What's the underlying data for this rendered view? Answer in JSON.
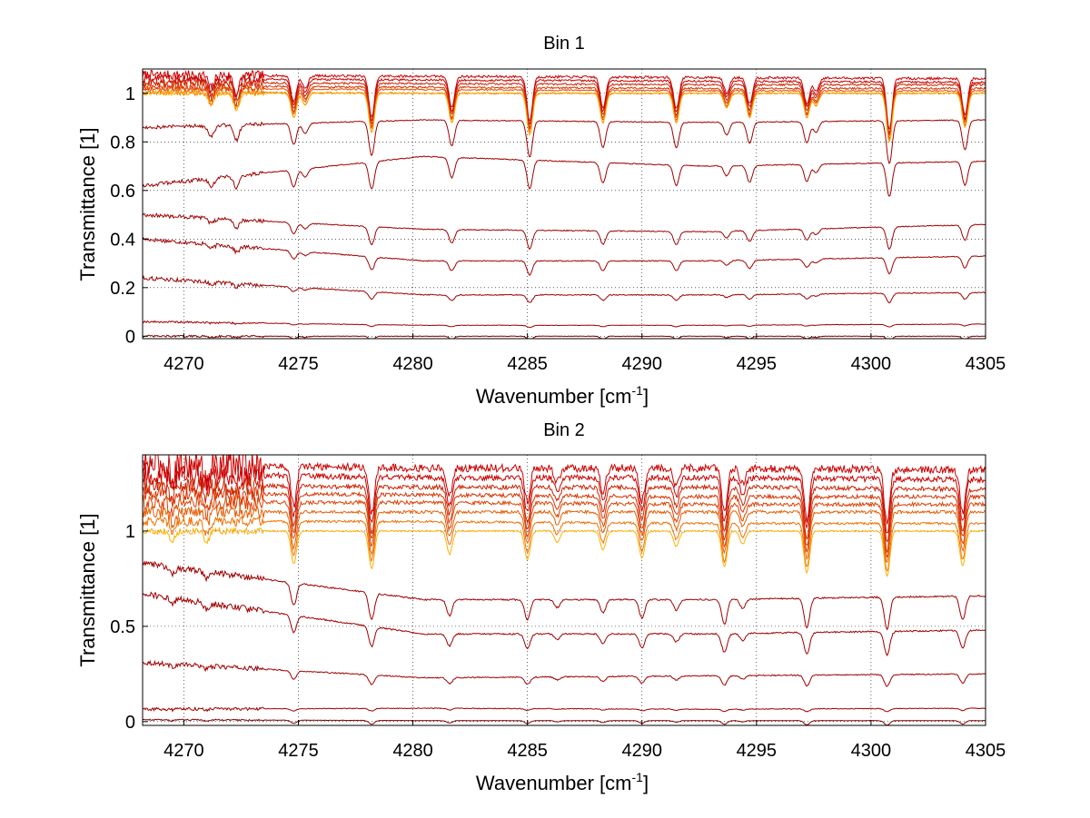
{
  "chart_data": [
    {
      "type": "line",
      "title": "Bin 1",
      "xlabel": "Wavenumber [cm",
      "xlabel_sup": "-1",
      "xlabel_suffix": "]",
      "ylabel": "Transmittance [1]",
      "xlim": [
        4268.2,
        4305
      ],
      "ylim": [
        -0.01,
        1.1
      ],
      "xticks": [
        4270,
        4275,
        4280,
        4285,
        4290,
        4295,
        4300,
        4305
      ],
      "yticks": [
        0,
        0.2,
        0.4,
        0.6,
        0.8,
        1
      ],
      "ytick_labels": [
        "0",
        "0.2",
        "0.4",
        "0.6",
        "0.8",
        "1"
      ],
      "grid": true,
      "absorption_lines_x": [
        4271.2,
        4272.3,
        4274.8,
        4275.3,
        4278.2,
        4281.7,
        4285.1,
        4288.3,
        4291.5,
        4293.7,
        4294.7,
        4297.2,
        4297.6,
        4300.8,
        4304.1
      ],
      "absorption_depths": [
        0.05,
        0.07,
        0.1,
        0.05,
        0.16,
        0.12,
        0.17,
        0.12,
        0.12,
        0.06,
        0.1,
        0.1,
        0.05,
        0.2,
        0.14
      ],
      "series": [
        {
          "baseline": [
            1.075,
            1.07,
            1.065,
            1.06
          ],
          "noise": 0.005,
          "color": "#cc0000"
        },
        {
          "baseline": [
            1.06,
            1.055,
            1.05,
            1.045
          ],
          "noise": 0.004,
          "color": "#cc0000"
        },
        {
          "baseline": [
            1.045,
            1.04,
            1.035,
            1.035
          ],
          "noise": 0.004,
          "color": "#cc2200"
        },
        {
          "baseline": [
            1.03,
            1.025,
            1.02,
            1.02
          ],
          "noise": 0.004,
          "color": "#d93300"
        },
        {
          "baseline": [
            1.02,
            1.015,
            1.01,
            1.01
          ],
          "noise": 0.003,
          "color": "#e64d00"
        },
        {
          "baseline": [
            1.005,
            1.0,
            1.0,
            1.0
          ],
          "noise": 0.003,
          "color": "#f07000"
        },
        {
          "baseline": [
            1.0,
            1.0,
            1.0,
            1.0
          ],
          "noise": 0.002,
          "color": "#ffb000"
        },
        {
          "baseline": [
            0.86,
            0.89,
            0.88,
            0.89
          ],
          "noise": 0.002,
          "color": "#a00000"
        },
        {
          "baseline": [
            0.62,
            0.74,
            0.7,
            0.72
          ],
          "noise": 0.002,
          "color": "#a00000"
        },
        {
          "baseline": [
            0.5,
            0.44,
            0.43,
            0.46
          ],
          "noise": 0.002,
          "color": "#a00000"
        },
        {
          "baseline": [
            0.4,
            0.31,
            0.31,
            0.33
          ],
          "noise": 0.002,
          "color": "#a00000"
        },
        {
          "baseline": [
            0.24,
            0.17,
            0.17,
            0.18
          ],
          "noise": 0.002,
          "color": "#a00000"
        },
        {
          "baseline": [
            0.06,
            0.045,
            0.045,
            0.05
          ],
          "noise": 0.001,
          "color": "#a00000"
        },
        {
          "baseline": [
            0.0,
            0.0,
            0.0,
            0.0
          ],
          "noise": 0.001,
          "color": "#800000"
        }
      ]
    },
    {
      "type": "line",
      "title": "Bin 2",
      "xlabel": "Wavenumber [cm",
      "xlabel_sup": "-1",
      "xlabel_suffix": "]",
      "ylabel": "Transmittance [1]",
      "xlim": [
        4268.2,
        4305
      ],
      "ylim": [
        -0.02,
        1.4
      ],
      "xticks": [
        4270,
        4275,
        4280,
        4285,
        4290,
        4295,
        4300,
        4305
      ],
      "yticks": [
        0,
        0.5,
        1
      ],
      "ytick_labels": [
        "0",
        "0.5",
        "1"
      ],
      "grid": true,
      "absorption_lines_x": [
        4269.5,
        4271.0,
        4274.8,
        4278.2,
        4281.6,
        4285.0,
        4286.3,
        4288.3,
        4290.0,
        4291.5,
        4293.6,
        4294.4,
        4297.2,
        4300.7,
        4304.0
      ],
      "absorption_depths": [
        0.05,
        0.06,
        0.17,
        0.2,
        0.12,
        0.15,
        0.06,
        0.1,
        0.14,
        0.08,
        0.19,
        0.07,
        0.22,
        0.24,
        0.18
      ],
      "series": [
        {
          "baseline": [
            1.35,
            1.33,
            1.33,
            1.32
          ],
          "noise": 0.02,
          "color": "#cc0000"
        },
        {
          "baseline": [
            1.3,
            1.28,
            1.28,
            1.27
          ],
          "noise": 0.015,
          "color": "#cc0000"
        },
        {
          "baseline": [
            1.24,
            1.23,
            1.23,
            1.22
          ],
          "noise": 0.012,
          "color": "#cc2200"
        },
        {
          "baseline": [
            1.2,
            1.19,
            1.18,
            1.18
          ],
          "noise": 0.01,
          "color": "#d93300"
        },
        {
          "baseline": [
            1.15,
            1.15,
            1.14,
            1.14
          ],
          "noise": 0.01,
          "color": "#e04000"
        },
        {
          "baseline": [
            1.1,
            1.1,
            1.1,
            1.1
          ],
          "noise": 0.008,
          "color": "#e65c00"
        },
        {
          "baseline": [
            1.05,
            1.05,
            1.04,
            1.04
          ],
          "noise": 0.006,
          "color": "#f07000"
        },
        {
          "baseline": [
            1.0,
            1.0,
            1.0,
            1.0
          ],
          "noise": 0.004,
          "color": "#ffb000"
        },
        {
          "baseline": [
            0.83,
            0.64,
            0.64,
            0.66
          ],
          "noise": 0.004,
          "color": "#a00000"
        },
        {
          "baseline": [
            0.67,
            0.46,
            0.46,
            0.48
          ],
          "noise": 0.004,
          "color": "#a00000"
        },
        {
          "baseline": [
            0.31,
            0.23,
            0.24,
            0.25
          ],
          "noise": 0.003,
          "color": "#a00000"
        },
        {
          "baseline": [
            0.065,
            0.07,
            0.065,
            0.07
          ],
          "noise": 0.002,
          "color": "#a00000"
        },
        {
          "baseline": [
            0.01,
            0.005,
            0.005,
            0.005
          ],
          "noise": 0.001,
          "color": "#800000"
        }
      ]
    }
  ]
}
